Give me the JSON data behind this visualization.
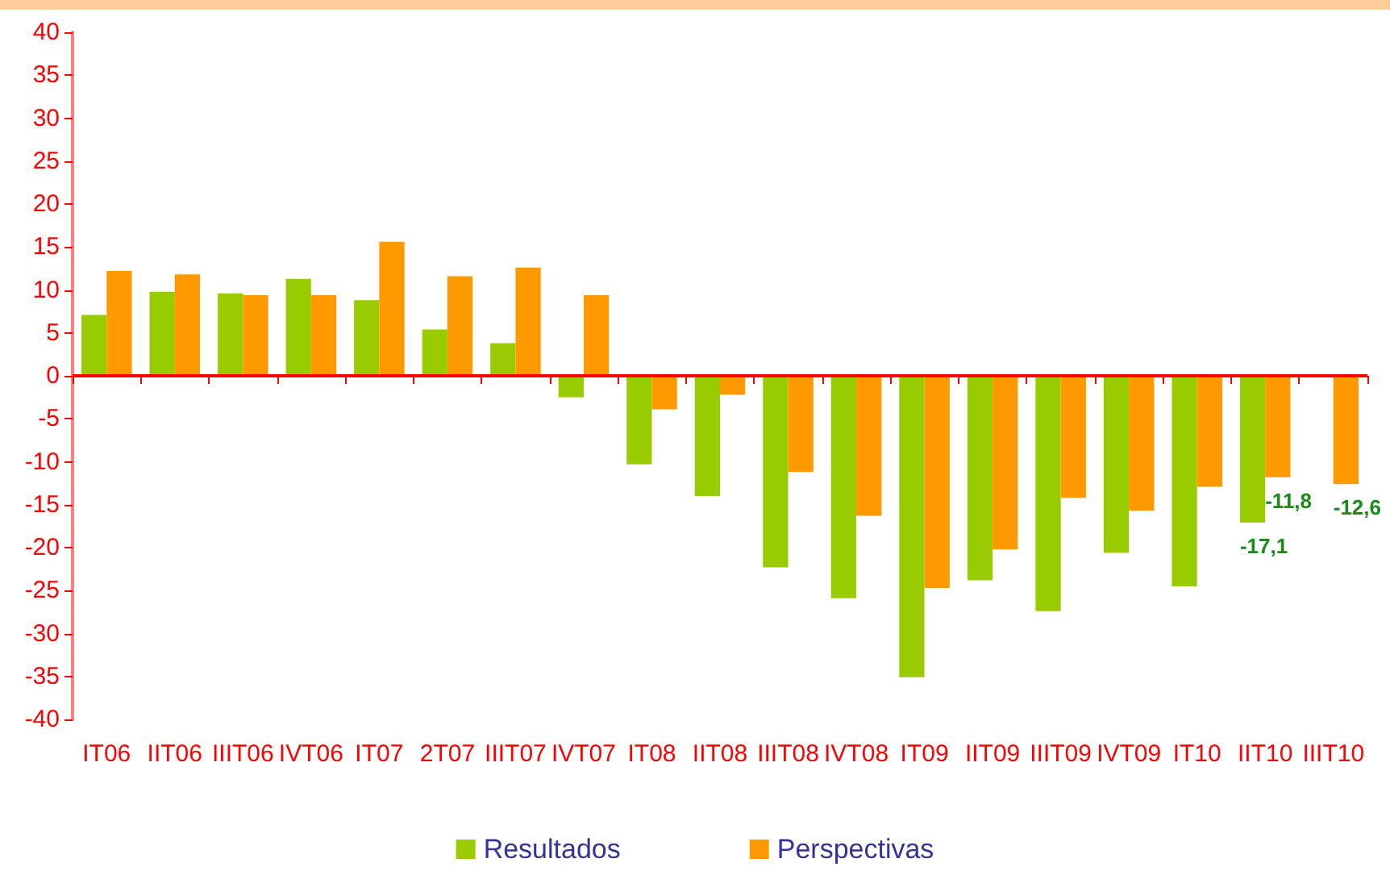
{
  "chart_data": {
    "type": "bar",
    "categories": [
      "IT06",
      "IIT06",
      "IIIT06",
      "IVT06",
      "IT07",
      "2T07",
      "IIIT07",
      "IVT07",
      "IT08",
      "IIT08",
      "IIIT08",
      "IVT08",
      "IT09",
      "IIT09",
      "IIIT09",
      "IVT09",
      "IT10",
      "IIT10",
      "IIIT10"
    ],
    "series": [
      {
        "name": "Resultados",
        "color": "#99cc00",
        "values": [
          7.1,
          9.8,
          9.6,
          11.3,
          8.8,
          5.4,
          3.8,
          -2.5,
          -10.3,
          -14.0,
          -22.3,
          -25.9,
          -35.1,
          -23.8,
          -27.4,
          -20.6,
          -24.5,
          -17.1,
          null
        ],
        "value_labels": [
          null,
          null,
          null,
          null,
          null,
          null,
          null,
          null,
          null,
          null,
          null,
          null,
          null,
          null,
          null,
          null,
          null,
          "-17,1",
          null
        ]
      },
      {
        "name": "Perspectivas",
        "color": "#ff9900",
        "values": [
          12.2,
          11.8,
          9.4,
          9.4,
          15.6,
          11.6,
          12.6,
          9.4,
          -3.9,
          -2.2,
          -11.2,
          -16.3,
          -24.7,
          -20.2,
          -14.2,
          -15.7,
          -12.9,
          -11.8,
          -12.6
        ],
        "value_labels": [
          null,
          null,
          null,
          null,
          null,
          null,
          null,
          null,
          null,
          null,
          null,
          null,
          null,
          null,
          null,
          null,
          null,
          "-11,8",
          "-12,6"
        ]
      }
    ],
    "ylim": [
      -40,
      40
    ],
    "yticks": [
      -40,
      -35,
      -30,
      -25,
      -20,
      -15,
      -10,
      -5,
      0,
      5,
      10,
      15,
      20,
      25,
      30,
      35,
      40
    ],
    "ref_lines": [
      {
        "axis": "y",
        "value": 0,
        "color": "#ff0000"
      }
    ],
    "grid": false,
    "legend": "bottom"
  }
}
